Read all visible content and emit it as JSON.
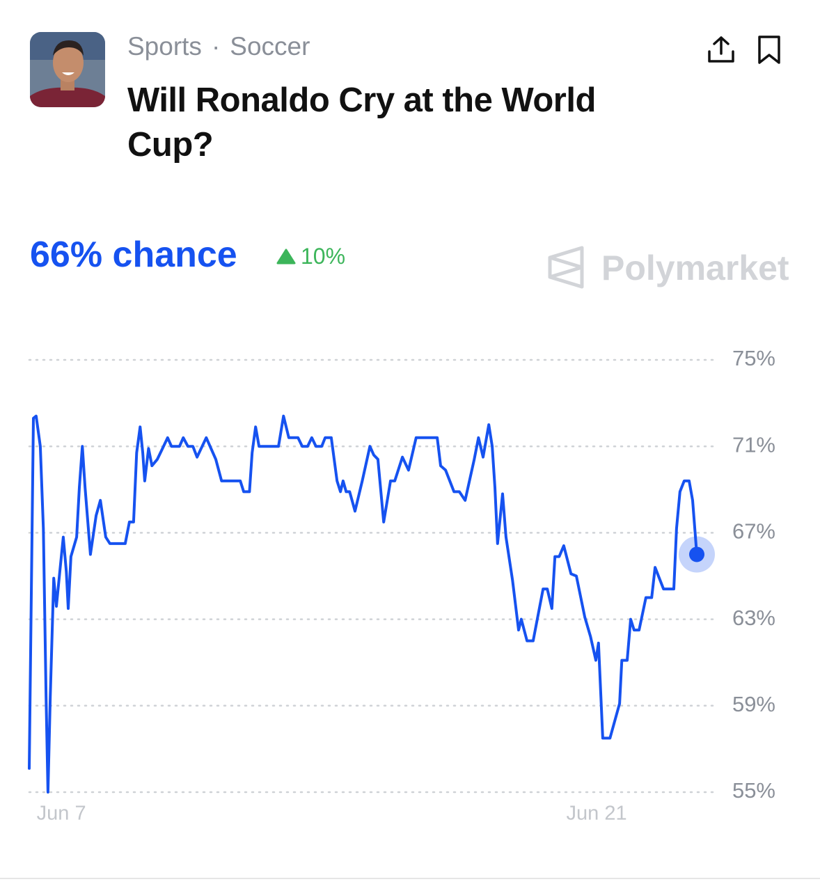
{
  "header": {
    "category": "Sports",
    "separator": "·",
    "subcategory": "Soccer",
    "title": "Will Ronaldo Cry at the World Cup?"
  },
  "summary": {
    "chance": "66% chance",
    "change": "10%"
  },
  "brand": "Polymarket",
  "chart_data": {
    "type": "line",
    "color": "#1652f0",
    "x": [
      6.16,
      6.27,
      6.34,
      6.45,
      6.53,
      6.6,
      6.65,
      6.71,
      6.8,
      6.87,
      6.96,
      7.05,
      7.13,
      7.18,
      7.25,
      7.4,
      7.47,
      7.55,
      7.62,
      7.76,
      7.91,
      8.02,
      8.16,
      8.27,
      8.67,
      8.78,
      8.89,
      8.97,
      9.06,
      9.13,
      9.18,
      9.28,
      9.37,
      9.51,
      9.62,
      9.78,
      9.88,
      10.09,
      10.19,
      10.31,
      10.44,
      10.55,
      10.79,
      11.04,
      11.19,
      11.68,
      11.77,
      11.92,
      11.99,
      12.08,
      12.17,
      12.68,
      12.81,
      12.95,
      13.19,
      13.3,
      13.44,
      13.55,
      13.66,
      13.81,
      13.9,
      14.06,
      14.21,
      14.3,
      14.37,
      14.45,
      14.54,
      14.68,
      14.87,
      15.07,
      15.17,
      15.28,
      15.43,
      15.61,
      15.72,
      15.92,
      16.08,
      16.28,
      16.83,
      16.92,
      17.05,
      17.27,
      17.41,
      17.56,
      17.8,
      17.91,
      18.03,
      18.18,
      18.27,
      18.34,
      18.41,
      18.54,
      18.63,
      18.8,
      18.96,
      19.03,
      19.18,
      19.34,
      19.6,
      19.71,
      19.83,
      19.91,
      20.02,
      20.14,
      20.33,
      20.47,
      20.69,
      20.84,
      20.98,
      21.05,
      21.16,
      21.35,
      21.6,
      21.66,
      21.8,
      21.89,
      21.98,
      22.11,
      22.29,
      22.44,
      22.53,
      22.75,
      23.02,
      23.09,
      23.18,
      23.29,
      23.42,
      23.51,
      23.62
    ],
    "values": [
      56.1,
      72.3,
      72.4,
      71.0,
      67.2,
      59.4,
      55.0,
      59.4,
      64.9,
      63.6,
      65.2,
      66.8,
      65.2,
      63.5,
      65.9,
      66.8,
      69.1,
      71.0,
      69.1,
      66.0,
      67.8,
      68.5,
      66.8,
      66.5,
      66.5,
      67.5,
      67.5,
      70.7,
      71.9,
      70.7,
      69.4,
      70.9,
      70.1,
      70.4,
      70.8,
      71.4,
      71.0,
      71.0,
      71.4,
      71.0,
      71.0,
      70.5,
      71.4,
      70.4,
      69.4,
      69.4,
      68.9,
      68.9,
      70.7,
      71.9,
      71.0,
      71.0,
      72.4,
      71.4,
      71.4,
      71.0,
      71.0,
      71.4,
      71.0,
      71.0,
      71.4,
      71.4,
      69.4,
      68.9,
      69.4,
      68.9,
      68.9,
      68.0,
      69.4,
      71.0,
      70.6,
      70.4,
      67.5,
      69.4,
      69.4,
      70.5,
      69.9,
      71.4,
      71.4,
      70.1,
      69.9,
      68.9,
      68.9,
      68.5,
      70.4,
      71.4,
      70.5,
      72.0,
      71.0,
      69.1,
      66.5,
      68.8,
      66.8,
      64.8,
      62.5,
      63.0,
      62.0,
      62.0,
      64.4,
      64.4,
      63.5,
      65.9,
      65.9,
      66.4,
      65.1,
      65.0,
      63.1,
      62.2,
      61.1,
      61.9,
      57.5,
      57.5,
      59.1,
      61.1,
      61.1,
      63.0,
      62.5,
      62.5,
      64.0,
      64.0,
      65.4,
      64.4,
      64.4,
      67.2,
      68.9,
      69.4,
      69.4,
      68.5,
      66.0
    ],
    "xlim": [
      6.16,
      23.62
    ],
    "xticks": [
      {
        "value": 7,
        "label": "Jun 7"
      },
      {
        "value": 21,
        "label": "Jun 21"
      }
    ],
    "ylim": [
      55,
      75
    ],
    "yticks": [
      {
        "value": 55,
        "label": "55%"
      },
      {
        "value": 59,
        "label": "59%"
      },
      {
        "value": 63,
        "label": "63%"
      },
      {
        "value": 67,
        "label": "67%"
      },
      {
        "value": 71,
        "label": "71%"
      },
      {
        "value": 75,
        "label": "75%"
      }
    ],
    "grid": true
  }
}
